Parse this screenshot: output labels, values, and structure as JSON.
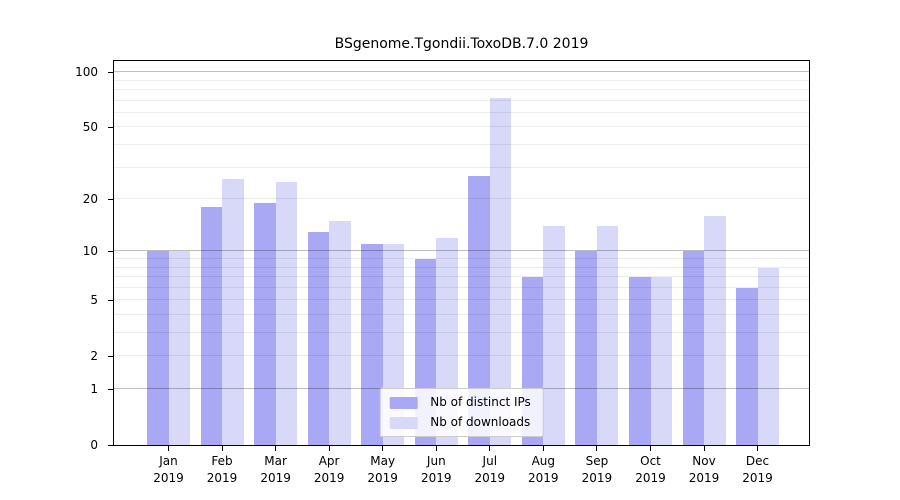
{
  "title": "BSgenome.Tgondii.ToxoDB.7.0 2019",
  "legend": {
    "items": [
      {
        "label": "Nb of distinct IPs",
        "color": "#a8a8f4"
      },
      {
        "label": "Nb of downloads",
        "color": "#d8d8f8"
      }
    ],
    "position": "lower center"
  },
  "colors": {
    "background": "#ffffff",
    "axis": "#000000",
    "minor_grid": "#ececec",
    "major_grid": "#bdbdbd",
    "series_distinct_ips": "#a8a8f4",
    "series_downloads": "#d8d8f8"
  },
  "chart_data": {
    "type": "bar",
    "title": "BSgenome.Tgondii.ToxoDB.7.0 2019",
    "categories": [
      "Jan 2019",
      "Feb 2019",
      "Mar 2019",
      "Apr 2019",
      "May 2019",
      "Jun 2019",
      "Jul 2019",
      "Aug 2019",
      "Sep 2019",
      "Oct 2019",
      "Nov 2019",
      "Dec 2019"
    ],
    "series": [
      {
        "name": "Nb of distinct IPs",
        "color": "#a8a8f4",
        "values": [
          10,
          18,
          19,
          13,
          11,
          9,
          27,
          7,
          10,
          7,
          10,
          6
        ]
      },
      {
        "name": "Nb of downloads",
        "color": "#d8d8f8",
        "values": [
          10,
          26,
          25,
          15,
          11,
          12,
          72,
          14,
          14,
          7,
          16,
          8
        ]
      }
    ],
    "xlabel": "",
    "ylabel": "",
    "y_scale": "log10(1+x)",
    "y_ticks": [
      0,
      1,
      2,
      5,
      10,
      20,
      50,
      100
    ],
    "y_major_grid": [
      1,
      10,
      100
    ],
    "y_minor_grid": [
      2,
      3,
      4,
      5,
      6,
      7,
      8,
      9,
      20,
      30,
      40,
      50,
      60,
      70,
      80,
      90
    ],
    "ylim": [
      0,
      115
    ],
    "grid": true,
    "legend_position": "lower center"
  }
}
